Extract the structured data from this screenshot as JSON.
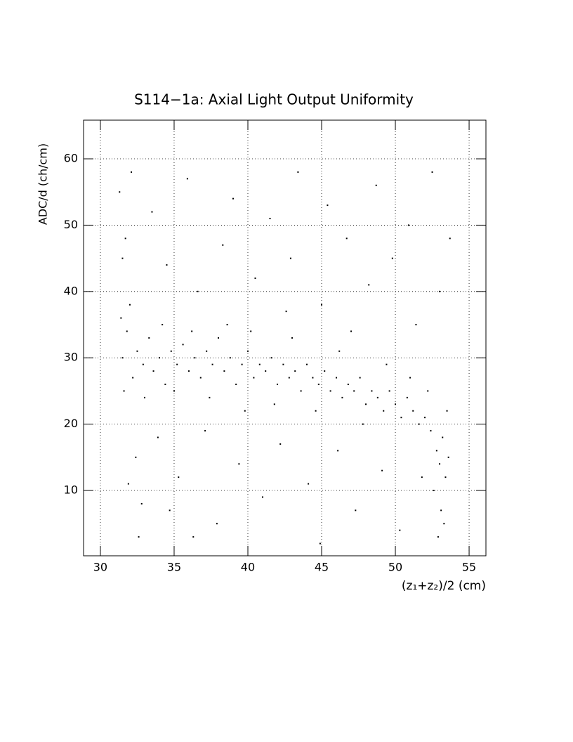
{
  "chart_data": {
    "type": "scatter",
    "title": "S114−1a: Axial Light Output Uniformity",
    "x_label": "(z₁+z₂)/2 (cm)",
    "y_label": "ADC/d (ch/cm)",
    "color": "#000000",
    "grid": true,
    "xlim": [
      28.86,
      56.14
    ],
    "ylim": [
      0.15,
      65.83
    ],
    "xticks": [
      30,
      35,
      40,
      45,
      50,
      55
    ],
    "yticks": [
      10,
      20,
      30,
      40,
      50,
      60
    ],
    "x": [
      31.5,
      31.8,
      32.2,
      32.5,
      32.9,
      33.3,
      33.6,
      34.0,
      34.4,
      34.8,
      35.2,
      35.6,
      36.0,
      36.4,
      36.8,
      37.2,
      37.6,
      38.0,
      38.4,
      38.8,
      39.2,
      39.6,
      40.0,
      40.4,
      40.8,
      41.2,
      41.6,
      42.0,
      42.4,
      42.8,
      43.2,
      43.6,
      44.0,
      44.4,
      44.8,
      45.2,
      45.6,
      46.0,
      46.4,
      46.8,
      47.2,
      47.6,
      48.0,
      48.4,
      48.8,
      49.2,
      49.6,
      50.0,
      50.4,
      50.8,
      51.2,
      51.6,
      52.0,
      52.4,
      52.8,
      53.0,
      53.2,
      53.4,
      53.6,
      52.6,
      53.1,
      31.4,
      31.6,
      32.0,
      33.0,
      34.2,
      35.0,
      36.2,
      37.4,
      38.6,
      40.2,
      41.8,
      43.0,
      44.6,
      46.2,
      47.8,
      49.4,
      51.0,
      52.2,
      53.5,
      31.3,
      31.5,
      31.7,
      32.1,
      32.4,
      32.8,
      33.5,
      33.9,
      34.5,
      35.3,
      35.9,
      36.6,
      37.1,
      37.9,
      38.3,
      39.0,
      39.4,
      40.5,
      41.0,
      41.5,
      42.2,
      42.9,
      43.4,
      44.1,
      45.0,
      45.4,
      46.1,
      46.7,
      47.3,
      48.2,
      48.7,
      49.1,
      49.8,
      50.3,
      50.9,
      51.4,
      51.8,
      52.5,
      53.0,
      53.7,
      53.3,
      32.6,
      36.3,
      44.9,
      52.9,
      31.9,
      34.7,
      39.8,
      42.6,
      47.0
    ],
    "values": [
      30,
      34,
      27,
      31,
      29,
      33,
      28,
      30,
      26,
      31,
      29,
      32,
      28,
      30,
      27,
      31,
      29,
      33,
      28,
      30,
      26,
      29,
      31,
      27,
      29,
      28,
      30,
      26,
      29,
      27,
      28,
      25,
      29,
      27,
      26,
      28,
      25,
      27,
      24,
      26,
      25,
      27,
      23,
      25,
      24,
      22,
      25,
      23,
      21,
      24,
      22,
      20,
      21,
      19,
      16,
      14,
      18,
      12,
      15,
      10,
      7,
      36,
      25,
      38,
      24,
      35,
      25,
      34,
      24,
      35,
      34,
      23,
      33,
      22,
      31,
      20,
      29,
      27,
      25,
      22,
      55,
      45,
      48,
      58,
      15,
      8,
      52,
      18,
      44,
      12,
      57,
      40,
      19,
      5,
      47,
      54,
      14,
      42,
      9,
      51,
      17,
      45,
      58,
      11,
      38,
      53,
      16,
      48,
      7,
      41,
      56,
      13,
      45,
      4,
      50,
      35,
      12,
      58,
      40,
      48,
      5,
      3,
      3,
      2,
      3,
      11,
      7,
      22,
      37,
      34
    ]
  }
}
